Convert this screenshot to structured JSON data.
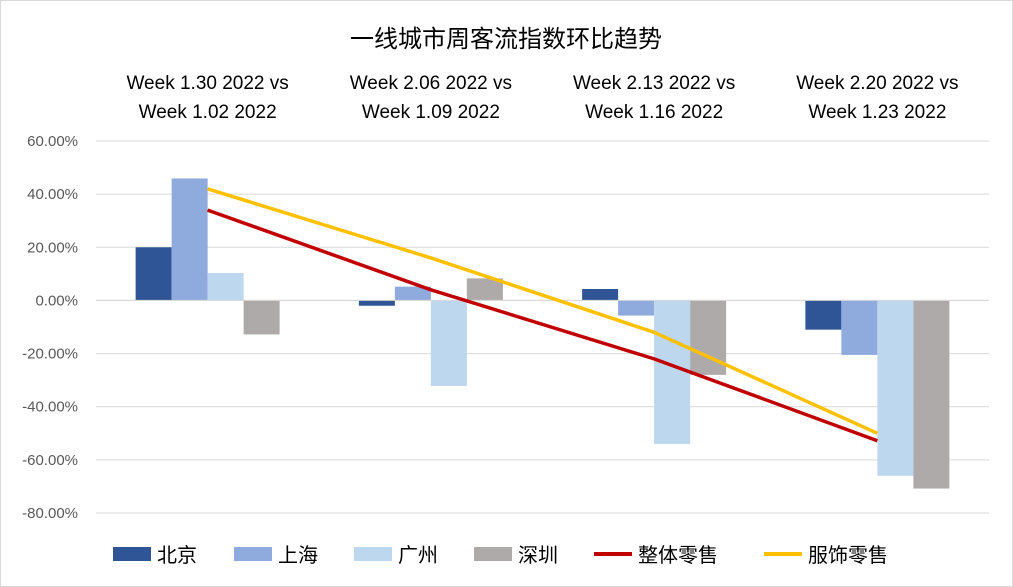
{
  "chart_data": {
    "type": "bar",
    "title": "一线城市周客流指数环比趋势",
    "categories": [
      [
        "Week 1.30 2022  vs",
        "Week 1.02 2022"
      ],
      [
        "Week 2.06 2022  vs",
        "Week 1.09 2022"
      ],
      [
        "Week 2.13 2022  vs",
        "Week 1.16 2022"
      ],
      [
        "Week 2.20 2022  vs",
        "Week 1.23 2022"
      ]
    ],
    "ylim": [
      -80,
      60
    ],
    "y_ticks": [
      60,
      40,
      20,
      0,
      -20,
      -40,
      -60,
      -80
    ],
    "y_tick_labels": [
      "60.00%",
      "40.00%",
      "20.00%",
      "0.00%",
      "-20.00%",
      "-40.00%",
      "-60.00%",
      "-80.00%"
    ],
    "grid": true,
    "legend_position": "bottom",
    "series": [
      {
        "name": "北京",
        "kind": "bar",
        "color": "#2f5597",
        "values": [
          20.0,
          -2.0,
          4.3,
          -11.0
        ]
      },
      {
        "name": "上海",
        "kind": "bar",
        "color": "#8faadc",
        "values": [
          45.9,
          5.2,
          -5.7,
          -20.5
        ]
      },
      {
        "name": "广州",
        "kind": "bar",
        "color": "#bdd7ee",
        "values": [
          10.3,
          -32.2,
          -54.0,
          -66.0
        ]
      },
      {
        "name": "深圳",
        "kind": "bar",
        "color": "#aeaaaa",
        "values": [
          -12.8,
          8.3,
          -28.0,
          -70.8
        ]
      },
      {
        "name": "整体零售",
        "kind": "line",
        "color": "#c00000",
        "values": [
          34.0,
          4.0,
          -22.0,
          -52.8
        ]
      },
      {
        "name": "服饰零售",
        "kind": "line",
        "color": "#ffc000",
        "values": [
          42.0,
          16.0,
          -12.0,
          -50.0
        ]
      }
    ]
  }
}
